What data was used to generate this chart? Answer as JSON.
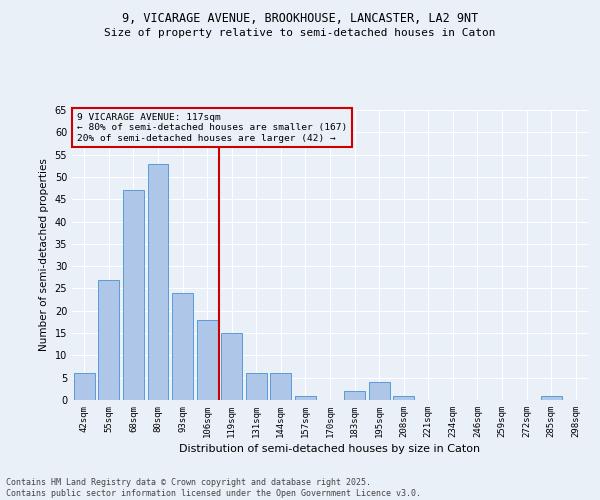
{
  "title1": "9, VICARAGE AVENUE, BROOKHOUSE, LANCASTER, LA2 9NT",
  "title2": "Size of property relative to semi-detached houses in Caton",
  "xlabel": "Distribution of semi-detached houses by size in Caton",
  "ylabel": "Number of semi-detached properties",
  "categories": [
    "42sqm",
    "55sqm",
    "68sqm",
    "80sqm",
    "93sqm",
    "106sqm",
    "119sqm",
    "131sqm",
    "144sqm",
    "157sqm",
    "170sqm",
    "183sqm",
    "195sqm",
    "208sqm",
    "221sqm",
    "234sqm",
    "246sqm",
    "259sqm",
    "272sqm",
    "285sqm",
    "298sqm"
  ],
  "values": [
    6,
    27,
    47,
    53,
    24,
    18,
    15,
    6,
    6,
    1,
    0,
    2,
    4,
    1,
    0,
    0,
    0,
    0,
    0,
    1,
    0
  ],
  "bar_color": "#aec6e8",
  "bar_edge_color": "#5b9bd5",
  "property_label": "9 VICARAGE AVENUE: 117sqm",
  "annotation_line1": "← 80% of semi-detached houses are smaller (167)",
  "annotation_line2": "20% of semi-detached houses are larger (42) →",
  "vline_color": "#cc0000",
  "vline_x": 5.5,
  "annotation_box_color": "#cc0000",
  "ylim": [
    0,
    65
  ],
  "yticks": [
    0,
    5,
    10,
    15,
    20,
    25,
    30,
    35,
    40,
    45,
    50,
    55,
    60,
    65
  ],
  "background_color": "#eaf0f8",
  "grid_color": "#ffffff",
  "footer1": "Contains HM Land Registry data © Crown copyright and database right 2025.",
  "footer2": "Contains public sector information licensed under the Open Government Licence v3.0."
}
